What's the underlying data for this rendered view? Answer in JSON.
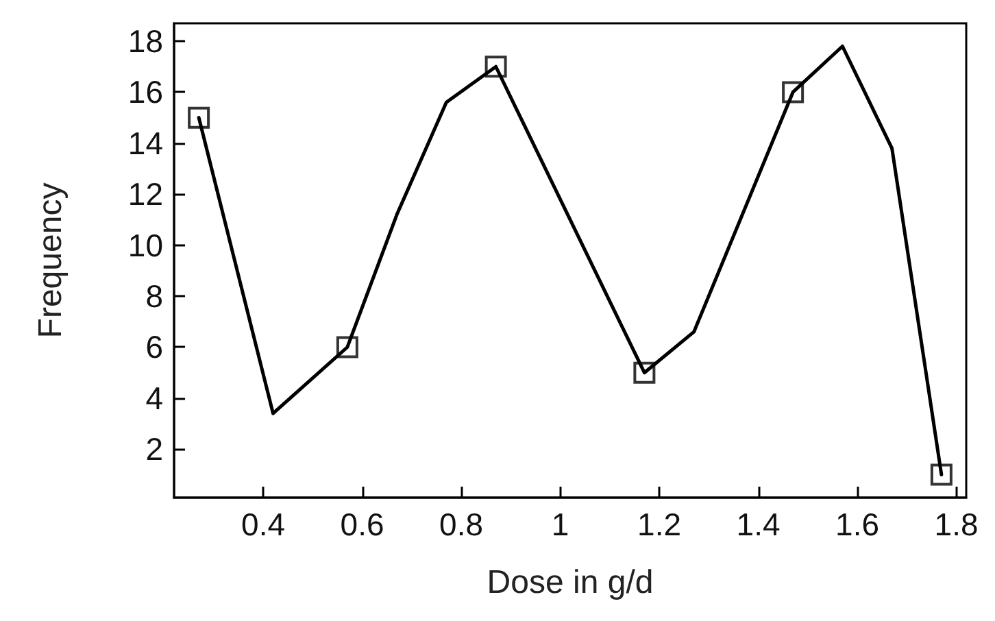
{
  "chart_data": {
    "type": "line",
    "xlabel": "Dose in g/d",
    "ylabel": "Frequency",
    "xlim": [
      0.22,
      1.82
    ],
    "xticks": [
      0.4,
      0.6,
      0.8,
      1,
      1.2,
      1.4,
      1.6,
      1.8
    ],
    "ylim": [
      0.1,
      18.7
    ],
    "yticks": [
      2,
      4,
      6,
      8,
      10,
      12,
      14,
      16,
      18
    ],
    "grid": false,
    "series": [
      {
        "marker": "none",
        "line_style": "solid",
        "color": "#000000",
        "x": [
          0.27,
          0.42,
          0.57,
          0.67,
          0.77,
          0.87,
          1.17,
          1.27,
          1.47,
          1.57,
          1.67,
          1.77
        ],
        "values": [
          15,
          3.4,
          6,
          11.2,
          15.6,
          17,
          5,
          6.6,
          16,
          17.8,
          13.8,
          1
        ]
      },
      {
        "type": "scatter",
        "marker": "square",
        "color": "#000000",
        "x": [
          0.27,
          0.57,
          0.87,
          1.17,
          1.47,
          1.77
        ],
        "values": [
          15,
          6,
          17,
          5,
          16,
          1
        ]
      }
    ]
  }
}
